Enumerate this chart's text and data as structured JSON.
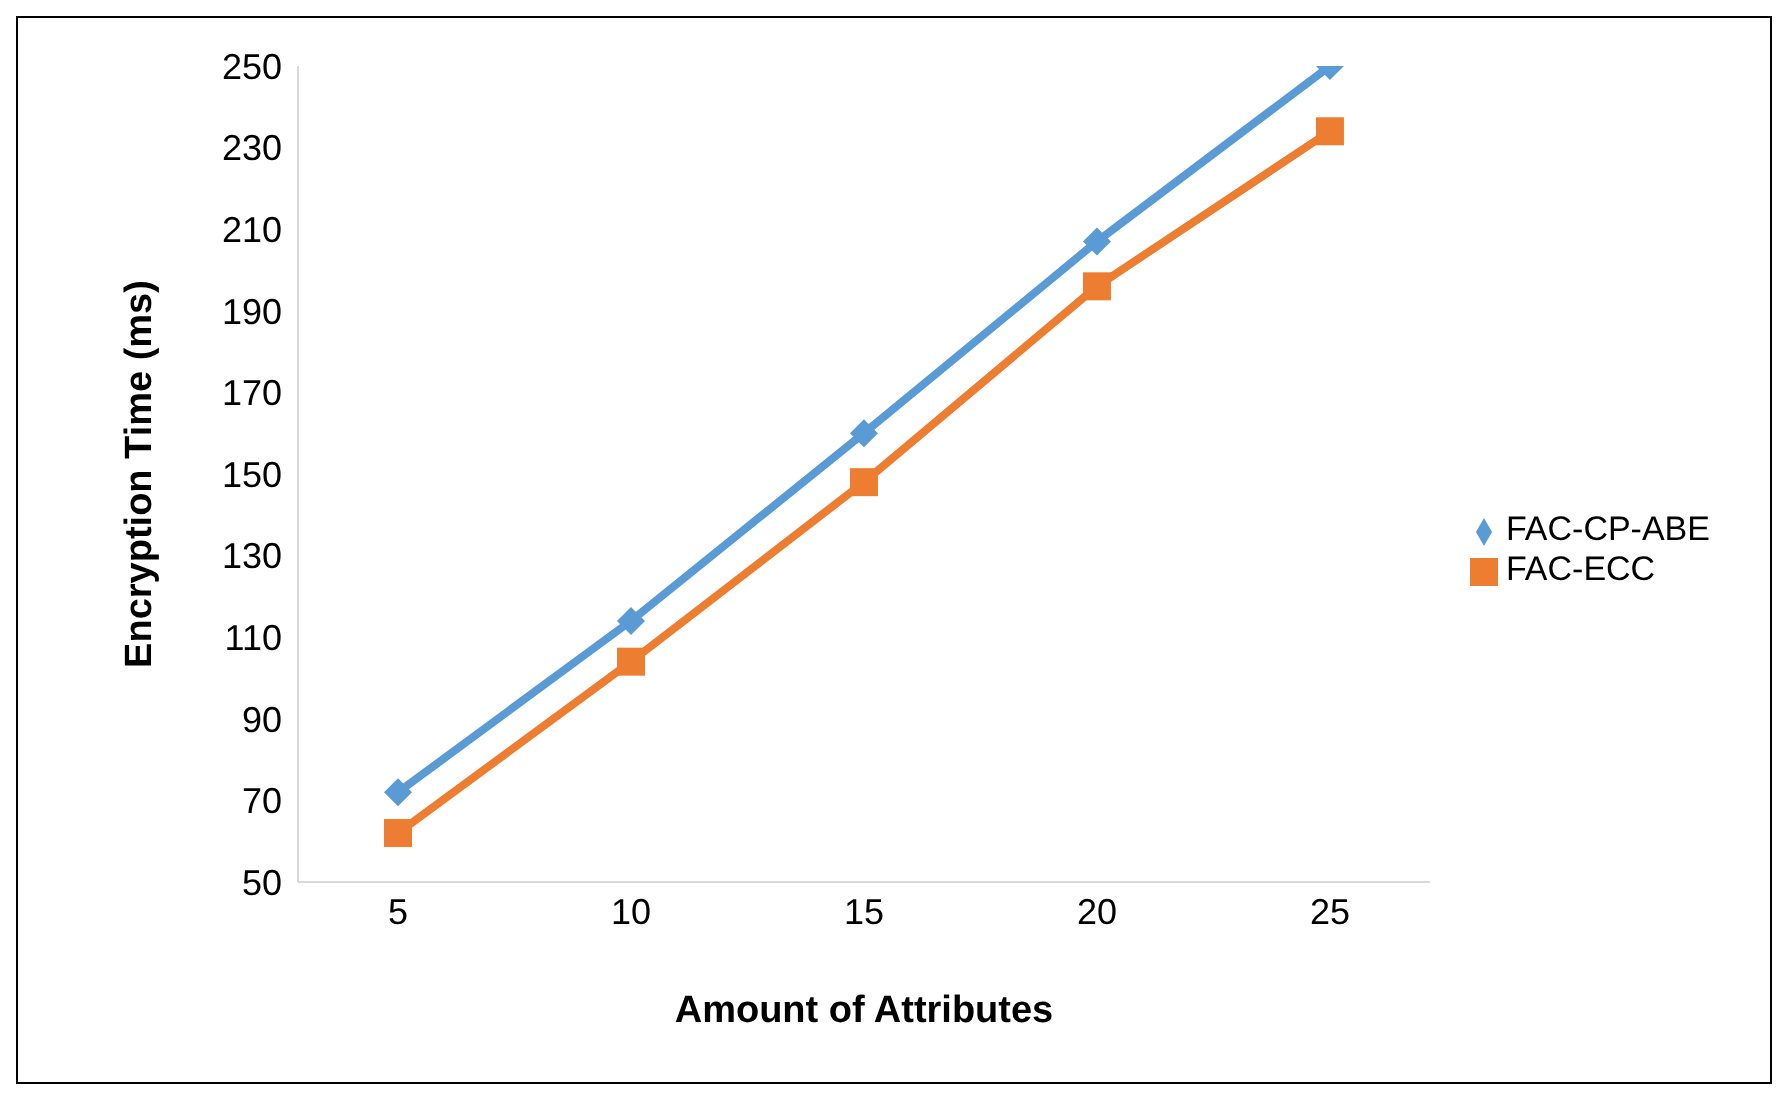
{
  "chart_data": {
    "type": "line",
    "xlabel": "Amount of Attributes",
    "ylabel": "Encryption Time (ms)",
    "categories": [
      "5",
      "10",
      "15",
      "20",
      "25"
    ],
    "series": [
      {
        "name": "FAC-CP-ABE",
        "color": "#5b9bd5",
        "marker": "diamond",
        "values": [
          72,
          114,
          160,
          207,
          250
        ]
      },
      {
        "name": "FAC-ECC",
        "color": "#ed7d31",
        "marker": "square",
        "values": [
          62,
          104,
          148,
          196,
          234
        ]
      }
    ],
    "ylim": [
      50,
      250
    ],
    "yticks": [
      50,
      70,
      90,
      110,
      130,
      150,
      170,
      190,
      210,
      230,
      250
    ],
    "grid": false,
    "legend": "right",
    "line_style": "solid"
  }
}
